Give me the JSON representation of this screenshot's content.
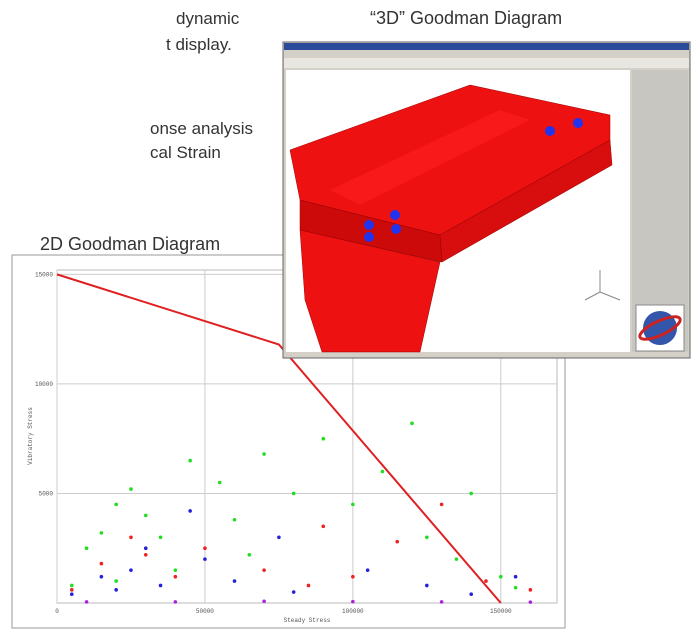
{
  "text_lines": [
    "dynamic",
    "t display.",
    "onse analysis",
    "cal Strain"
  ],
  "labels": {
    "left": "2D Goodman Diagram",
    "right": "“3D” Goodman Diagram"
  },
  "chart_data": {
    "type": "scatter",
    "x_label": "Steady Stress",
    "y_label": "Vibratory Stress",
    "xlim": [
      0,
      169000
    ],
    "ylim": [
      0,
      15200
    ],
    "xticks": [
      0,
      50000,
      100000,
      150000
    ],
    "yticks": [
      5000,
      10000,
      15000
    ],
    "grid": true,
    "series": [
      {
        "color": "#22dd22",
        "x": [
          5000,
          10000,
          15000,
          20000,
          25000,
          30000,
          35000,
          45000,
          55000,
          60000,
          70000,
          80000,
          90000,
          100000,
          110000,
          120000,
          125000,
          135000,
          140000,
          150000,
          155000,
          40000,
          20000,
          65000
        ],
        "values": [
          800,
          2500,
          3200,
          4500,
          5200,
          4000,
          3000,
          6500,
          5500,
          3800,
          6800,
          5000,
          7500,
          4500,
          6000,
          8200,
          3000,
          2000,
          5000,
          1200,
          700,
          1500,
          1000,
          2200
        ]
      },
      {
        "color": "#ee2222",
        "x": [
          5000,
          15000,
          25000,
          30000,
          40000,
          50000,
          70000,
          90000,
          100000,
          115000,
          130000,
          145000,
          160000,
          85000
        ],
        "values": [
          600,
          1800,
          3000,
          2200,
          1200,
          2500,
          1500,
          3500,
          1200,
          2800,
          4500,
          1000,
          600,
          800
        ]
      },
      {
        "color": "#2222dd",
        "x": [
          5000,
          15000,
          25000,
          30000,
          35000,
          45000,
          50000,
          60000,
          75000,
          80000,
          105000,
          125000,
          140000,
          155000,
          20000
        ],
        "values": [
          400,
          1200,
          1500,
          2500,
          800,
          4200,
          2000,
          1000,
          3000,
          500,
          1500,
          800,
          400,
          1200,
          600
        ]
      },
      {
        "color": "#aa22dd",
        "x": [
          10000,
          40000,
          70000,
          100000,
          130000,
          160000
        ],
        "values": [
          50,
          50,
          80,
          60,
          50,
          40
        ]
      },
      {
        "type": "line",
        "color": "#e02020",
        "x": [
          0,
          75000,
          150000
        ],
        "values": [
          15000,
          11800,
          0
        ]
      }
    ]
  }
}
